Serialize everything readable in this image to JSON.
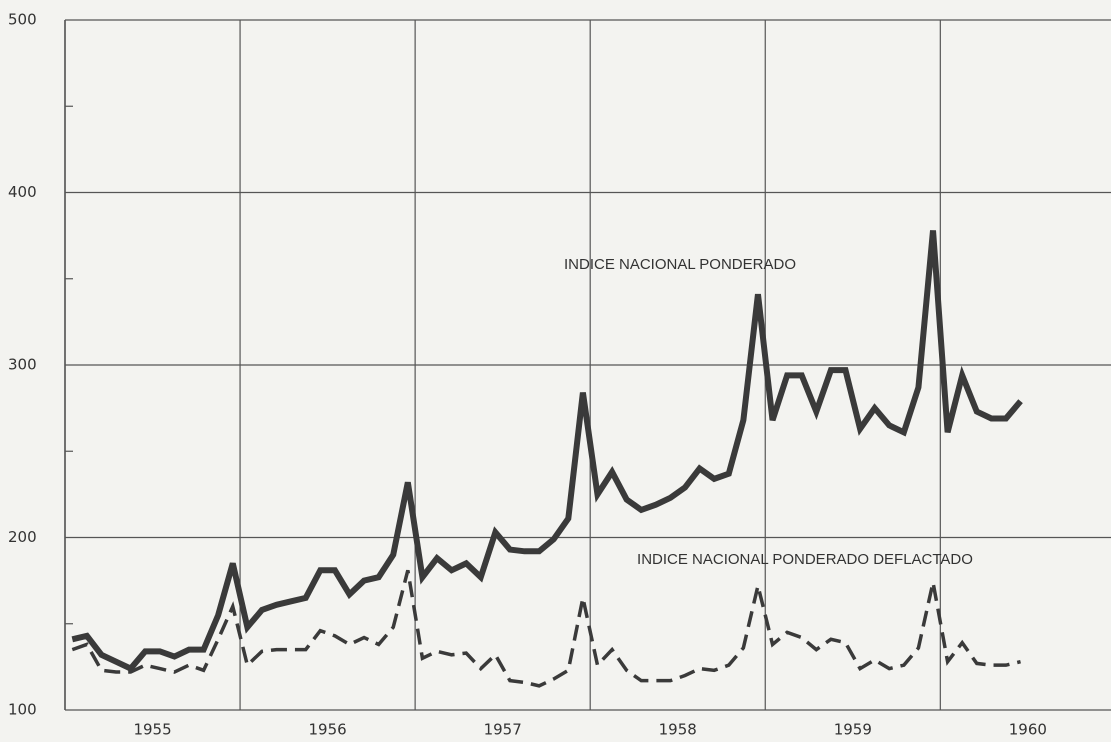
{
  "chart_data": {
    "type": "line",
    "x": [
      0,
      1,
      2,
      3,
      4,
      5,
      6,
      7,
      8,
      9,
      10,
      11,
      12,
      13,
      14,
      15,
      16,
      17,
      18,
      19,
      20,
      21,
      22,
      23,
      24,
      25,
      26,
      27,
      28,
      29,
      30,
      31,
      32,
      33,
      34,
      35,
      36,
      37,
      38,
      39,
      40,
      41,
      42,
      43,
      44,
      45,
      46,
      47,
      48,
      49,
      50,
      51,
      52,
      53,
      54,
      55,
      56,
      57,
      58,
      59,
      60,
      61,
      62,
      63,
      64,
      65
    ],
    "series": [
      {
        "name": "INDICE NACIONAL PONDERADO",
        "color": "#3a3a3a",
        "dashed": false,
        "values": [
          141,
          143,
          132,
          128,
          124,
          134,
          134,
          131,
          135,
          135,
          155,
          185,
          148,
          158,
          161,
          163,
          165,
          181,
          181,
          167,
          175,
          177,
          190,
          232,
          177,
          188,
          181,
          185,
          177,
          203,
          193,
          192,
          192,
          199,
          211,
          284,
          225,
          238,
          222,
          216,
          219,
          223,
          229,
          240,
          234,
          237,
          268,
          341,
          268,
          294,
          294,
          273,
          297,
          297,
          263,
          275,
          265,
          261,
          287,
          378,
          261,
          294,
          273,
          269,
          269,
          279
        ]
      },
      {
        "name": "INDICE NACIONAL PONDERADO DEFLACTADO",
        "color": "#3a3a3a",
        "dashed": true,
        "values": [
          135,
          138,
          123,
          122,
          122,
          126,
          124,
          122,
          126,
          123,
          141,
          160,
          126,
          134,
          135,
          135,
          135,
          146,
          143,
          138,
          142,
          138,
          148,
          181,
          130,
          134,
          132,
          133,
          124,
          132,
          117,
          116,
          114,
          118,
          123,
          165,
          126,
          135,
          123,
          117,
          117,
          117,
          120,
          124,
          123,
          126,
          136,
          172,
          138,
          145,
          142,
          135,
          141,
          139,
          124,
          129,
          124,
          126,
          136,
          174,
          128,
          139,
          127,
          126,
          126,
          128
        ]
      }
    ],
    "xlim": [
      -0.5,
      71.2
    ],
    "xticks": [
      {
        "value": 5.5,
        "label": "1955"
      },
      {
        "value": 17.5,
        "label": "1956"
      },
      {
        "value": 29.5,
        "label": "1957"
      },
      {
        "value": 41.5,
        "label": "1958"
      },
      {
        "value": 53.5,
        "label": "1959"
      },
      {
        "value": 65.5,
        "label": "1960"
      }
    ],
    "ylim": [
      100,
      500
    ],
    "yticks": [
      100,
      200,
      300,
      400,
      500
    ],
    "y_minor_ticks": [
      150,
      250,
      350,
      450
    ],
    "grid": true
  }
}
